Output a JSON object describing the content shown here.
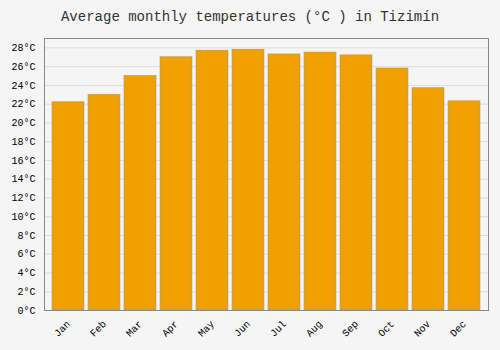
{
  "chart_data": {
    "type": "bar",
    "title": "Average monthly temperatures (°C ) in Tizimín",
    "categories": [
      "Jan",
      "Feb",
      "Mar",
      "Apr",
      "May",
      "Jun",
      "Jul",
      "Aug",
      "Sep",
      "Oct",
      "Nov",
      "Dec"
    ],
    "values": [
      22.2,
      23.0,
      25.0,
      27.0,
      27.7,
      27.8,
      27.3,
      27.5,
      27.2,
      25.8,
      23.7,
      22.3
    ],
    "color": "#F0A000",
    "ylim": [
      0,
      29
    ],
    "yticks": [
      {
        "value": 0,
        "label": "0°C"
      },
      {
        "value": 2,
        "label": "2°C"
      },
      {
        "value": 4,
        "label": "4°C"
      },
      {
        "value": 6,
        "label": "6°C"
      },
      {
        "value": 8,
        "label": "8°C"
      },
      {
        "value": 10,
        "label": "10°C"
      },
      {
        "value": 12,
        "label": "12°C"
      },
      {
        "value": 14,
        "label": "14°C"
      },
      {
        "value": 16,
        "label": "16°C"
      },
      {
        "value": 18,
        "label": "18°C"
      },
      {
        "value": 20,
        "label": "20°C"
      },
      {
        "value": 22,
        "label": "22°C"
      },
      {
        "value": 24,
        "label": "24°C"
      },
      {
        "value": 26,
        "label": "26°C"
      },
      {
        "value": 28,
        "label": "28°C"
      }
    ],
    "grid": true
  }
}
